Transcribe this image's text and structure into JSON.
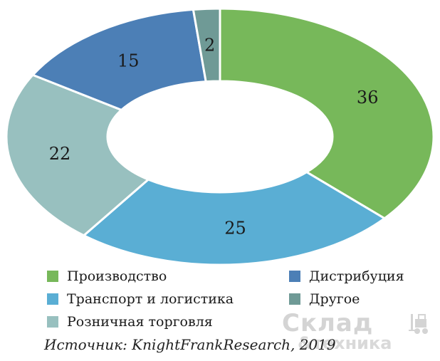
{
  "chart_data": {
    "type": "pie",
    "categories": [
      "Производство",
      "Транспорт и логистика",
      "Розничная торговля",
      "Дистрибуция",
      "Другое"
    ],
    "values": [
      36,
      25,
      22,
      15,
      2
    ],
    "colors": [
      "#77b85a",
      "#5aaed4",
      "#98c0bf",
      "#4c7fb6",
      "#6f9a96"
    ],
    "donut": true,
    "title": "",
    "legend_position": "bottom"
  },
  "source": "Источник: KnightFrankResearch, 2019",
  "watermark": {
    "line1": "Склад",
    "line2": "&техника",
    "icon": "forklift-icon"
  }
}
